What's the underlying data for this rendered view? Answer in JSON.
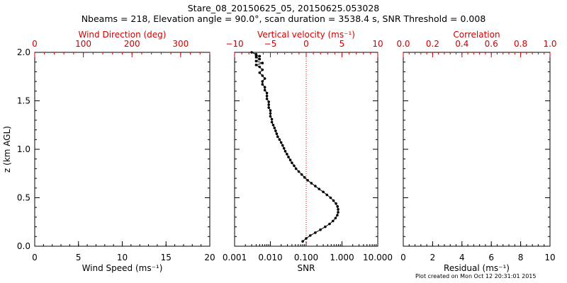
{
  "chart_data": {
    "type": "scatter",
    "title": "Stare_08_20150625_05, 20150625.053028",
    "subtitle": "Nbeams = 218, Elevation angle = 90.0°, scan duration = 3538.4 s, SNR Threshold = 0.008",
    "ylabel": "z (km AGL)",
    "ylim": [
      0.0,
      2.0
    ],
    "yticks": [
      "0.0",
      "0.5",
      "1.0",
      "1.5",
      "2.0"
    ],
    "panels": [
      {
        "name": "wind",
        "bottom_axis": {
          "label": "Wind Speed (ms⁻¹)",
          "range": [
            0,
            20
          ],
          "ticks": [
            "0",
            "5",
            "10",
            "15",
            "20"
          ],
          "tick_values": [
            0,
            5,
            10,
            15,
            20
          ]
        },
        "top_axis": {
          "label": "Wind Direction (deg)",
          "range": [
            0,
            360
          ],
          "ticks": [
            "0",
            "100",
            "200",
            "300"
          ],
          "tick_values": [
            0,
            100,
            200,
            300
          ]
        },
        "series": []
      },
      {
        "name": "vertical",
        "bottom_axis": {
          "label": "SNR",
          "scale": "log",
          "range": [
            0.001,
            10
          ],
          "ticks": [
            "0.001",
            "0.010",
            "0.100",
            "1.000",
            "10.000"
          ],
          "tick_values": [
            0.001,
            0.01,
            0.1,
            1,
            10
          ]
        },
        "top_axis": {
          "label": "Vertical velocity (ms⁻¹)",
          "range": [
            -10,
            10
          ],
          "ticks": [
            "−10",
            "−5",
            "0",
            "5",
            "10"
          ],
          "tick_values": [
            -10,
            -5,
            0,
            5,
            10
          ]
        },
        "reference_line": {
          "axis": "top",
          "value": 0,
          "color": "#cc0000",
          "style": "dotted"
        },
        "series": [
          {
            "name": "SNR profile",
            "color": "#000000",
            "x": [
              0.08,
              0.1,
              0.13,
              0.18,
              0.25,
              0.34,
              0.45,
              0.56,
              0.66,
              0.74,
              0.78,
              0.78,
              0.75,
              0.68,
              0.58,
              0.48,
              0.38,
              0.3,
              0.23,
              0.18,
              0.14,
              0.11,
              0.09,
              0.075,
              0.062,
              0.052,
              0.046,
              0.04,
              0.036,
              0.032,
              0.029,
              0.026,
              0.024,
              0.022,
              0.02,
              0.018,
              0.016,
              0.015,
              0.014,
              0.013,
              0.012,
              0.011,
              0.011,
              0.01,
              0.01,
              0.01,
              0.009,
              0.009,
              0.009,
              0.008,
              0.008,
              0.008,
              0.007,
              0.007,
              0.006,
              0.006,
              0.007,
              0.006,
              0.005,
              0.006,
              0.005,
              0.004,
              0.006,
              0.004,
              0.005,
              0.004,
              0.005,
              0.004,
              0.004,
              0.003
            ],
            "y": [
              0.05,
              0.08,
              0.11,
              0.14,
              0.17,
              0.2,
              0.23,
              0.26,
              0.29,
              0.32,
              0.35,
              0.38,
              0.41,
              0.44,
              0.47,
              0.5,
              0.53,
              0.56,
              0.59,
              0.62,
              0.65,
              0.68,
              0.71,
              0.74,
              0.77,
              0.8,
              0.83,
              0.86,
              0.89,
              0.92,
              0.95,
              0.98,
              1.01,
              1.04,
              1.07,
              1.1,
              1.13,
              1.16,
              1.19,
              1.22,
              1.25,
              1.28,
              1.31,
              1.34,
              1.37,
              1.4,
              1.43,
              1.46,
              1.49,
              1.52,
              1.55,
              1.58,
              1.61,
              1.64,
              1.67,
              1.7,
              1.73,
              1.76,
              1.79,
              1.82,
              1.85,
              1.87,
              1.89,
              1.91,
              1.93,
              1.95,
              1.96,
              1.97,
              1.98,
              2.0
            ]
          }
        ]
      },
      {
        "name": "correlation",
        "bottom_axis": {
          "label": "Residual (ms⁻¹)",
          "range": [
            0,
            10
          ],
          "ticks": [
            "0",
            "2",
            "4",
            "6",
            "8",
            "10"
          ],
          "tick_values": [
            0,
            2,
            4,
            6,
            8,
            10
          ]
        },
        "top_axis": {
          "label": "Correlation",
          "range": [
            0,
            1
          ],
          "ticks": [
            "0.0",
            "0.2",
            "0.4",
            "0.6",
            "0.8",
            "1.0"
          ],
          "tick_values": [
            0,
            0.2,
            0.4,
            0.6,
            0.8,
            1.0
          ]
        },
        "series": []
      }
    ],
    "colors": {
      "axis": "#000000",
      "top_axis": "#cc0000"
    },
    "footer": "Plot created on Mon Oct 12 20:31:01 2015"
  }
}
